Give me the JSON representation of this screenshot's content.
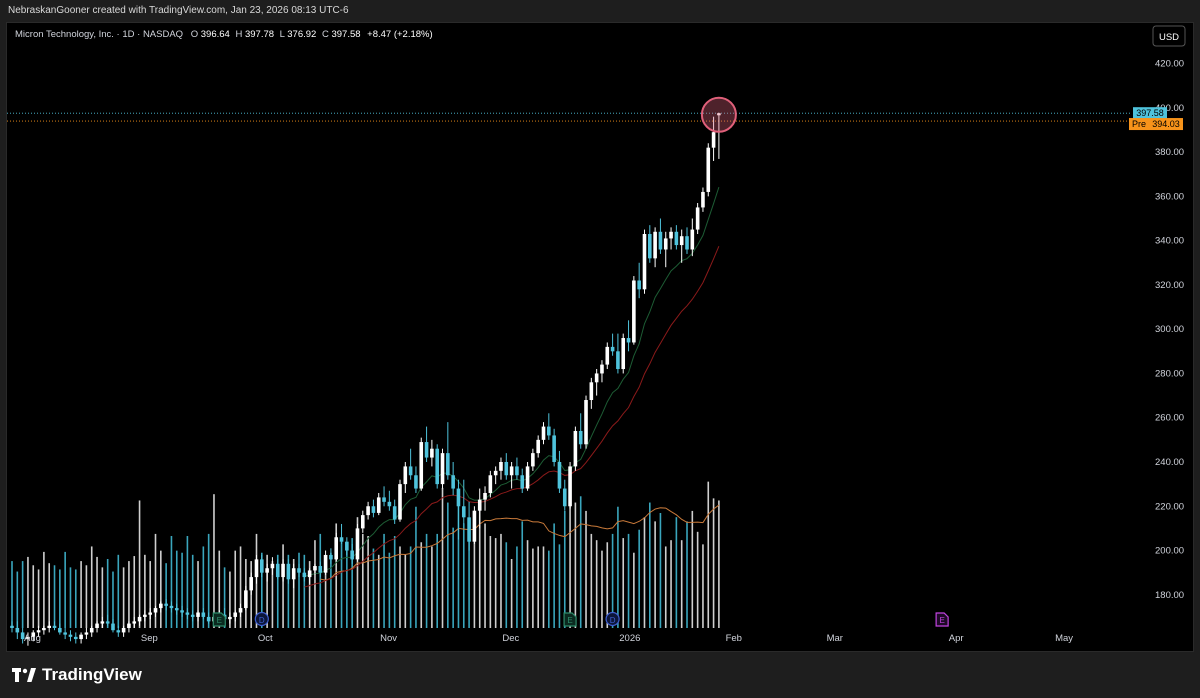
{
  "header": {
    "attribution": "NebraskanGooner created with TradingView.com, Jan 23, 2026 08:13 UTC-6"
  },
  "legend": {
    "symbol": "Micron Technology, Inc. · 1D · NASDAQ",
    "o_label": "O",
    "o_value": "396.64",
    "h_label": "H",
    "h_value": "397.78",
    "l_label": "L",
    "l_value": "376.92",
    "c_label": "C",
    "c_value": "397.58",
    "change": "+8.47 (+2.18%)"
  },
  "currency_button": "USD",
  "price_tag": "397.58",
  "pre_tag": {
    "label": "Pre",
    "value": "394.03"
  },
  "footer": {
    "brand": "TradingView"
  },
  "colors": {
    "up": "#ffffff",
    "down": "#4fc3dc",
    "ema_fast": "#0f3d1f",
    "ema_slow": "#8b1a1a",
    "volume_ma": "#c97a3a",
    "highlight": "#e0607a",
    "pre": "#f7931a",
    "last": "#4fc3dc"
  },
  "chart_data": {
    "type": "candlestick",
    "y_range": [
      165,
      432
    ],
    "y_ticks": [
      180,
      200,
      220,
      240,
      260,
      280,
      300,
      320,
      340,
      360,
      380,
      400,
      420
    ],
    "y_tick_labels": [
      "180.00",
      "200.00",
      "220.00",
      "240.00",
      "260.00",
      "280.00",
      "300.00",
      "320.00",
      "340.00",
      "360.00",
      "380.00",
      "400.00",
      "420.00"
    ],
    "x_labels": [
      "Aug",
      "Sep",
      "Oct",
      "Nov",
      "Dec",
      "2026",
      "Feb",
      "Mar",
      "Apr",
      "May"
    ],
    "x_label_index": [
      0,
      22,
      44,
      67,
      90,
      112,
      132,
      151,
      174,
      194
    ],
    "last_price": 397.58,
    "premarket_price": 394.03,
    "markers": [
      {
        "label": "E",
        "index": 39,
        "kind": "earnings"
      },
      {
        "label": "D",
        "index": 47,
        "kind": "dividend"
      },
      {
        "label": "E",
        "index": 105,
        "kind": "earnings"
      },
      {
        "label": "D",
        "index": 113,
        "kind": "dividend"
      },
      {
        "label": "E",
        "index": 175,
        "kind": "earnings-upcoming"
      }
    ],
    "candles": [
      [
        0,
        166,
        168,
        163,
        165
      ],
      [
        1,
        165,
        168,
        160,
        163
      ],
      [
        2,
        163,
        165,
        158,
        160
      ],
      [
        3,
        160,
        163,
        157,
        161
      ],
      [
        4,
        161,
        164,
        159,
        163
      ],
      [
        5,
        163,
        166,
        161,
        164
      ],
      [
        6,
        164,
        166,
        162,
        165
      ],
      [
        7,
        165,
        168,
        163,
        166
      ],
      [
        8,
        166,
        168,
        164,
        165
      ],
      [
        9,
        165,
        167,
        162,
        163
      ],
      [
        10,
        163,
        165,
        160,
        162
      ],
      [
        11,
        162,
        164,
        159,
        161
      ],
      [
        12,
        161,
        163,
        158,
        160
      ],
      [
        13,
        160,
        163,
        158,
        162
      ],
      [
        14,
        162,
        165,
        160,
        163
      ],
      [
        15,
        163,
        166,
        161,
        165
      ],
      [
        16,
        165,
        168,
        163,
        167
      ],
      [
        17,
        167,
        170,
        165,
        168
      ],
      [
        18,
        168,
        171,
        166,
        167
      ],
      [
        19,
        167,
        169,
        163,
        164
      ],
      [
        20,
        164,
        166,
        161,
        163
      ],
      [
        21,
        163,
        166,
        161,
        165
      ],
      [
        22,
        165,
        168,
        163,
        167
      ],
      [
        23,
        167,
        170,
        165,
        168
      ],
      [
        24,
        168,
        171,
        166,
        170
      ],
      [
        25,
        170,
        173,
        168,
        171
      ],
      [
        26,
        171,
        174,
        169,
        172
      ],
      [
        27,
        172,
        175,
        170,
        174
      ],
      [
        28,
        174,
        177,
        172,
        176
      ],
      [
        29,
        176,
        178,
        173,
        175
      ],
      [
        30,
        175,
        177,
        172,
        174
      ],
      [
        31,
        174,
        176,
        171,
        173
      ],
      [
        32,
        173,
        175,
        170,
        172
      ],
      [
        33,
        172,
        174,
        169,
        171
      ],
      [
        34,
        171,
        173,
        168,
        170
      ],
      [
        35,
        170,
        173,
        168,
        172
      ],
      [
        36,
        172,
        174,
        169,
        170
      ],
      [
        37,
        170,
        172,
        167,
        168
      ],
      [
        38,
        168,
        171,
        166,
        170
      ],
      [
        39,
        170,
        173,
        168,
        171
      ],
      [
        40,
        171,
        174,
        168,
        169
      ],
      [
        41,
        169,
        172,
        167,
        170
      ],
      [
        42,
        170,
        173,
        168,
        172
      ],
      [
        43,
        172,
        176,
        170,
        174
      ],
      [
        44,
        174,
        184,
        173,
        182
      ],
      [
        45,
        182,
        190,
        180,
        188
      ],
      [
        46,
        188,
        198,
        185,
        196
      ],
      [
        47,
        196,
        198,
        188,
        190
      ],
      [
        48,
        190,
        194,
        186,
        192
      ],
      [
        49,
        192,
        197,
        189,
        194
      ],
      [
        50,
        194,
        196,
        187,
        188
      ],
      [
        51,
        188,
        196,
        186,
        194
      ],
      [
        52,
        194,
        196,
        185,
        187
      ],
      [
        53,
        187,
        194,
        183,
        192
      ],
      [
        54,
        192,
        194,
        188,
        190
      ],
      [
        55,
        190,
        192,
        186,
        188
      ],
      [
        56,
        188,
        192,
        185,
        191
      ],
      [
        57,
        191,
        194,
        189,
        193
      ],
      [
        58,
        193,
        195,
        188,
        190
      ],
      [
        59,
        190,
        200,
        189,
        198
      ],
      [
        60,
        198,
        201,
        194,
        196
      ],
      [
        61,
        196,
        208,
        195,
        206
      ],
      [
        62,
        206,
        212,
        203,
        204
      ],
      [
        63,
        204,
        206,
        198,
        200
      ],
      [
        64,
        200,
        203,
        194,
        196
      ],
      [
        65,
        196,
        212,
        195,
        210
      ],
      [
        66,
        210,
        218,
        208,
        216
      ],
      [
        67,
        216,
        222,
        214,
        220
      ],
      [
        68,
        220,
        223,
        215,
        217
      ],
      [
        69,
        217,
        226,
        216,
        224
      ],
      [
        70,
        224,
        229,
        220,
        222
      ],
      [
        71,
        222,
        227,
        218,
        220
      ],
      [
        72,
        220,
        223,
        212,
        214
      ],
      [
        73,
        214,
        232,
        213,
        230
      ],
      [
        74,
        230,
        240,
        226,
        238
      ],
      [
        75,
        238,
        246,
        232,
        234
      ],
      [
        76,
        234,
        238,
        226,
        228
      ],
      [
        77,
        228,
        251,
        227,
        249
      ],
      [
        78,
        249,
        256,
        240,
        242
      ],
      [
        79,
        242,
        250,
        238,
        246
      ],
      [
        80,
        246,
        248,
        228,
        230
      ],
      [
        81,
        230,
        246,
        228,
        244
      ],
      [
        82,
        244,
        258,
        232,
        234
      ],
      [
        83,
        234,
        240,
        225,
        228
      ],
      [
        84,
        228,
        232,
        205,
        220
      ],
      [
        85,
        220,
        232,
        212,
        215
      ],
      [
        86,
        215,
        222,
        200,
        204
      ],
      [
        87,
        204,
        220,
        203,
        218
      ],
      [
        88,
        218,
        228,
        210,
        223
      ],
      [
        89,
        223,
        229,
        218,
        226
      ],
      [
        90,
        226,
        236,
        224,
        234
      ],
      [
        91,
        234,
        238,
        230,
        236
      ],
      [
        92,
        236,
        242,
        232,
        240
      ],
      [
        93,
        240,
        244,
        232,
        234
      ],
      [
        94,
        234,
        240,
        228,
        238
      ],
      [
        95,
        238,
        242,
        232,
        234
      ],
      [
        96,
        234,
        237,
        226,
        228
      ],
      [
        97,
        228,
        240,
        227,
        238
      ],
      [
        98,
        238,
        246,
        236,
        244
      ],
      [
        99,
        244,
        252,
        242,
        250
      ],
      [
        100,
        250,
        258,
        248,
        256
      ],
      [
        101,
        256,
        262,
        250,
        252
      ],
      [
        102,
        252,
        255,
        238,
        240
      ],
      [
        103,
        240,
        245,
        226,
        228
      ],
      [
        104,
        228,
        232,
        218,
        220
      ],
      [
        105,
        220,
        240,
        219,
        238
      ],
      [
        106,
        238,
        256,
        236,
        254
      ],
      [
        107,
        254,
        262,
        246,
        248
      ],
      [
        108,
        248,
        270,
        246,
        268
      ],
      [
        109,
        268,
        278,
        264,
        276
      ],
      [
        110,
        276,
        282,
        270,
        280
      ],
      [
        111,
        280,
        286,
        276,
        284
      ],
      [
        112,
        284,
        294,
        282,
        292
      ],
      [
        113,
        292,
        298,
        288,
        290
      ],
      [
        114,
        290,
        298,
        280,
        282
      ],
      [
        115,
        282,
        298,
        280,
        296
      ],
      [
        116,
        296,
        304,
        290,
        294
      ],
      [
        117,
        294,
        324,
        293,
        322
      ],
      [
        118,
        322,
        330,
        314,
        318
      ],
      [
        119,
        318,
        345,
        316,
        343
      ],
      [
        120,
        343,
        347,
        330,
        332
      ],
      [
        121,
        332,
        346,
        328,
        344
      ],
      [
        122,
        344,
        350,
        334,
        336
      ],
      [
        123,
        336,
        344,
        328,
        341
      ],
      [
        124,
        341,
        346,
        336,
        344
      ],
      [
        125,
        344,
        347,
        336,
        338
      ],
      [
        126,
        338,
        345,
        330,
        342
      ],
      [
        127,
        342,
        346,
        334,
        336
      ],
      [
        128,
        336,
        350,
        333,
        345
      ],
      [
        129,
        345,
        357,
        343,
        355
      ],
      [
        130,
        355,
        364,
        353,
        362
      ],
      [
        131,
        362,
        384,
        360,
        382
      ],
      [
        132,
        382,
        396,
        376,
        389
      ],
      [
        133,
        396.64,
        397.78,
        376.92,
        397.58
      ]
    ],
    "volume_range": [
      0,
      330
    ],
    "volumes": [
      160,
      135,
      160,
      170,
      150,
      140,
      182,
      155,
      150,
      140,
      182,
      145,
      140,
      160,
      150,
      195,
      170,
      145,
      165,
      135,
      175,
      145,
      160,
      172,
      305,
      175,
      160,
      225,
      185,
      155,
      220,
      185,
      180,
      220,
      175,
      160,
      195,
      225,
      320,
      185,
      145,
      135,
      185,
      195,
      165,
      160,
      225,
      180,
      175,
      160,
      175,
      200,
      175,
      165,
      180,
      175,
      160,
      210,
      225,
      165,
      180,
      250,
      210,
      205,
      215,
      265,
      225,
      220,
      190,
      175,
      225,
      180,
      220,
      195,
      175,
      195,
      290,
      205,
      225,
      195,
      225,
      335,
      300,
      240,
      305,
      250,
      215,
      225,
      295,
      250,
      220,
      215,
      225,
      205,
      165,
      195,
      255,
      210,
      190,
      195,
      195,
      185,
      250,
      200,
      280,
      330,
      300,
      315,
      280,
      225,
      210,
      185,
      205,
      225,
      290,
      215,
      225,
      180,
      235,
      265,
      300,
      255,
      275,
      195,
      210,
      265,
      210,
      255,
      280,
      230,
      200,
      350,
      310,
      305
    ]
  }
}
